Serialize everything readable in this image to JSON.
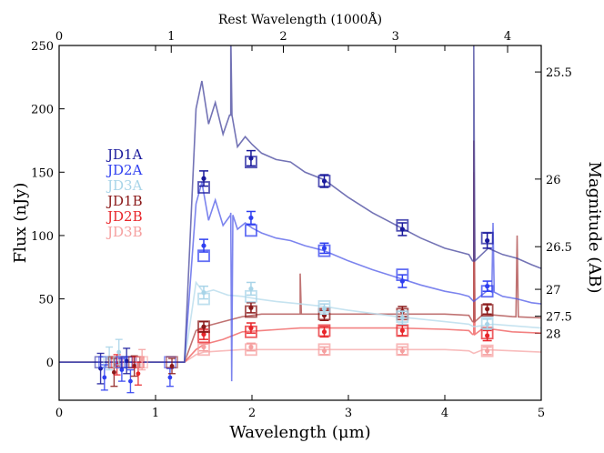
{
  "chart_data": {
    "type": "line",
    "title": "",
    "xlabel": "Wavelength (μm)",
    "ylabel": "Flux (nJy)",
    "top_xlabel": "Rest Wavelength (1000Å)",
    "right_ylabel": "Magnitude (AB)",
    "xlim": [
      0,
      5
    ],
    "ylim": [
      -30,
      250
    ],
    "top_xlim": [
      0,
      4.3
    ],
    "x_ticks": [
      0,
      1,
      2,
      3,
      4,
      5
    ],
    "y_ticks": [
      0,
      50,
      100,
      150,
      200,
      250
    ],
    "top_ticks": [
      0,
      1,
      2,
      3,
      4
    ],
    "mag_ticks": [
      {
        "mag": 25.5,
        "label": "25.5"
      },
      {
        "mag": 26,
        "label": "26"
      },
      {
        "mag": 26.5,
        "label": "26.5"
      },
      {
        "mag": 27,
        "label": "27"
      },
      {
        "mag": 27.5,
        "label": "27.5"
      },
      {
        "mag": 28,
        "label": "28"
      }
    ],
    "legend": {
      "placement": "upper-left",
      "entries": [
        {
          "label": "JD1A",
          "color": "#1a1a9c"
        },
        {
          "label": "JD2A",
          "color": "#2f3ff0"
        },
        {
          "label": "JD3A",
          "color": "#a8d4e8"
        },
        {
          "label": "JD1B",
          "color": "#8b1a1a"
        },
        {
          "label": "JD2B",
          "color": "#e8262b"
        },
        {
          "label": "JD3B",
          "color": "#f5a0a0"
        }
      ]
    },
    "series": [
      {
        "name": "JD1A",
        "color": "#1a1a9c",
        "line_color": "#3d3d99",
        "opacity": 0.72,
        "x": [
          0,
          1.3,
          1.42,
          1.48,
          1.55,
          1.62,
          1.7,
          1.78,
          1.85,
          1.93,
          2.0,
          2.1,
          2.25,
          2.4,
          2.55,
          2.75,
          3.0,
          3.25,
          3.5,
          3.75,
          4.0,
          4.15,
          4.25,
          4.3,
          4.45,
          4.6,
          4.75,
          4.9,
          5.0
        ],
        "values": [
          0,
          0,
          200,
          222,
          188,
          205,
          180,
          195,
          170,
          178,
          172,
          165,
          160,
          158,
          150,
          144,
          130,
          118,
          108,
          98,
          90,
          87,
          85,
          80,
          90,
          85,
          82,
          77,
          74
        ],
        "photometry": [
          {
            "x": 1.5,
            "y": 145,
            "err": 6,
            "model": 138
          },
          {
            "x": 1.99,
            "y": 161,
            "err": 6,
            "model": 158
          },
          {
            "x": 2.75,
            "y": 143,
            "err": 5,
            "model": 143
          },
          {
            "x": 3.56,
            "y": 105,
            "err": 5,
            "model": 108
          },
          {
            "x": 4.44,
            "y": 96,
            "err": 6,
            "model": 98
          }
        ]
      },
      {
        "name": "JD2A",
        "color": "#2f3ff0",
        "line_color": "#4a55e8",
        "opacity": 0.72,
        "x": [
          0,
          1.3,
          1.42,
          1.48,
          1.55,
          1.62,
          1.7,
          1.78,
          1.85,
          1.93,
          2.0,
          2.1,
          2.25,
          2.4,
          2.55,
          2.75,
          3.0,
          3.25,
          3.5,
          3.75,
          4.0,
          4.15,
          4.25,
          4.3,
          4.45,
          4.6,
          4.75,
          4.9,
          5.0
        ],
        "values": [
          0,
          0,
          125,
          142,
          112,
          128,
          108,
          118,
          105,
          110,
          106,
          102,
          98,
          96,
          92,
          88,
          80,
          73,
          67,
          61,
          56,
          54,
          52,
          48,
          57,
          52,
          50,
          47,
          46
        ],
        "photometry": [
          {
            "x": 1.5,
            "y": 92,
            "err": 5,
            "model": 84
          },
          {
            "x": 1.99,
            "y": 114,
            "err": 5,
            "model": 104
          },
          {
            "x": 2.75,
            "y": 90,
            "err": 4,
            "model": 88
          },
          {
            "x": 3.56,
            "y": 64,
            "err": 5,
            "model": 69
          },
          {
            "x": 4.44,
            "y": 60,
            "err": 4,
            "model": 56
          }
        ]
      },
      {
        "name": "JD3A",
        "color": "#a8d4e8",
        "line_color": "#b8dcec",
        "opacity": 0.8,
        "x": [
          0,
          1.3,
          1.42,
          1.5,
          1.6,
          1.75,
          1.9,
          2.05,
          2.25,
          2.5,
          2.75,
          3.0,
          3.5,
          4.0,
          4.25,
          4.3,
          4.5,
          5.0
        ],
        "values": [
          0,
          0,
          63,
          55,
          57,
          53,
          52,
          50,
          48,
          46,
          44,
          41,
          36,
          32,
          30,
          28,
          30,
          27
        ],
        "photometry": [
          {
            "x": 1.5,
            "y": 55,
            "err": 5,
            "model": 50
          },
          {
            "x": 1.99,
            "y": 58,
            "err": 5,
            "model": 52
          },
          {
            "x": 2.75,
            "y": 42,
            "err": 4,
            "model": 44
          },
          {
            "x": 3.56,
            "y": 35,
            "err": 5,
            "model": 36
          },
          {
            "x": 4.44,
            "y": 30,
            "err": 4,
            "model": 31
          }
        ]
      },
      {
        "name": "JD1B",
        "color": "#8b1a1a",
        "line_color": "#b05050",
        "opacity": 0.8,
        "x": [
          0,
          1.3,
          1.42,
          1.5,
          1.7,
          1.9,
          2.1,
          2.3,
          2.5,
          2.75,
          3.0,
          3.5,
          4.0,
          4.25,
          4.3,
          4.4,
          4.7,
          5.0
        ],
        "values": [
          0,
          0,
          25,
          28,
          32,
          36,
          38,
          38,
          38,
          38,
          38,
          38,
          38,
          37,
          32,
          38,
          36,
          35
        ],
        "photometry": [
          {
            "x": 1.5,
            "y": 28,
            "err": 4,
            "model": 28
          },
          {
            "x": 1.99,
            "y": 43,
            "err": 4,
            "model": 40
          },
          {
            "x": 2.75,
            "y": 37,
            "err": 4,
            "model": 38
          },
          {
            "x": 3.56,
            "y": 40,
            "err": 4,
            "model": 38
          },
          {
            "x": 4.44,
            "y": 42,
            "err": 4,
            "model": 41
          }
        ]
      },
      {
        "name": "JD2B",
        "color": "#e8262b",
        "line_color": "#ef5050",
        "opacity": 0.72,
        "x": [
          0,
          1.3,
          1.42,
          1.5,
          1.7,
          1.9,
          2.1,
          2.3,
          2.5,
          2.75,
          3.0,
          3.5,
          4.0,
          4.25,
          4.3,
          4.4,
          4.7,
          5.0
        ],
        "values": [
          0,
          0,
          10,
          14,
          18,
          24,
          25,
          26,
          27,
          27,
          27,
          27,
          26,
          25,
          22,
          27,
          24,
          23
        ],
        "photometry": [
          {
            "x": 1.5,
            "y": 22,
            "err": 4,
            "model": 20
          },
          {
            "x": 1.99,
            "y": 27,
            "err": 4,
            "model": 24
          },
          {
            "x": 2.75,
            "y": 24,
            "err": 4,
            "model": 25
          },
          {
            "x": 3.56,
            "y": 25,
            "err": 4,
            "model": 25
          },
          {
            "x": 4.44,
            "y": 21,
            "err": 4,
            "model": 23
          }
        ]
      },
      {
        "name": "JD3B",
        "color": "#f5a0a0",
        "line_color": "#f7b0b0",
        "opacity": 0.85,
        "x": [
          0,
          1.3,
          1.42,
          1.5,
          1.7,
          1.9,
          2.1,
          2.3,
          2.5,
          2.75,
          3.0,
          3.5,
          4.0,
          4.25,
          4.3,
          4.4,
          4.7,
          5.0
        ],
        "values": [
          0,
          0,
          6,
          8,
          9,
          10,
          10,
          10,
          10,
          10,
          10,
          10,
          10,
          9,
          7,
          10,
          9,
          8
        ],
        "photometry": [
          {
            "x": 1.5,
            "y": 12,
            "err": 3,
            "model": 10
          },
          {
            "x": 1.99,
            "y": 12,
            "err": 3,
            "model": 10
          },
          {
            "x": 2.75,
            "y": 9,
            "err": 3,
            "model": 10
          },
          {
            "x": 3.56,
            "y": 9,
            "err": 3,
            "model": 10
          },
          {
            "x": 4.44,
            "y": 9,
            "err": 3,
            "model": 9
          }
        ]
      }
    ],
    "spikes": [
      {
        "x": 1.78,
        "series": "JD1A",
        "top": 260
      },
      {
        "x": 1.79,
        "series": "JD2A",
        "top": -15
      },
      {
        "x": 2.5,
        "series": "JD1B",
        "top": 70
      },
      {
        "x": 4.3,
        "series": "JD1A",
        "top": 255
      },
      {
        "x": 4.3,
        "series": "JD1B",
        "top": 175
      },
      {
        "x": 4.3,
        "series": "JD2B",
        "top": 150
      },
      {
        "x": 4.5,
        "series": "JD2A",
        "top": 110
      },
      {
        "x": 4.75,
        "series": "JD1B",
        "top": 100
      }
    ],
    "blue_band_points": [
      {
        "x": 0.43,
        "y": -5,
        "err": 12,
        "series": "JD1A"
      },
      {
        "x": 0.47,
        "y": -12,
        "err": 10,
        "series": "JD2A"
      },
      {
        "x": 0.52,
        "y": 3,
        "err": 9,
        "series": "JD3A"
      },
      {
        "x": 0.57,
        "y": -8,
        "err": 11,
        "series": "JD1B"
      },
      {
        "x": 0.6,
        "y": -2,
        "err": 8,
        "series": "JD2B"
      },
      {
        "x": 0.62,
        "y": 8,
        "err": 10,
        "series": "JD3A"
      },
      {
        "x": 0.65,
        "y": -6,
        "err": 9,
        "series": "JD2A"
      },
      {
        "x": 0.7,
        "y": 1,
        "err": 10,
        "series": "JD1A"
      },
      {
        "x": 0.74,
        "y": -15,
        "err": 9,
        "series": "JD2A"
      },
      {
        "x": 0.78,
        "y": -3,
        "err": 8,
        "series": "JD1B"
      },
      {
        "x": 0.82,
        "y": -9,
        "err": 9,
        "series": "JD2B"
      },
      {
        "x": 0.86,
        "y": 2,
        "err": 8,
        "series": "JD3B"
      },
      {
        "x": 1.15,
        "y": -12,
        "err": 7,
        "series": "JD2A"
      },
      {
        "x": 1.17,
        "y": -3,
        "err": 6,
        "series": "JD1B"
      }
    ]
  }
}
